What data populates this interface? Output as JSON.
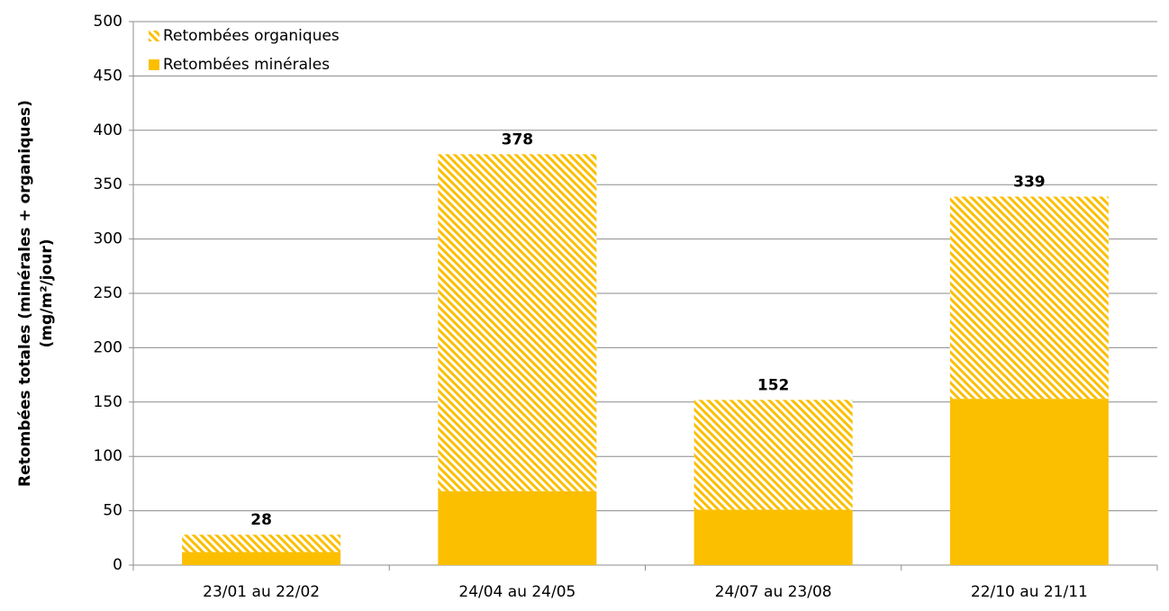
{
  "chart_data": {
    "type": "stacked_bar",
    "ylabel": [
      "Retombées totales (minérales + organiques)",
      "(mg/m²/jour)"
    ],
    "categories": [
      "23/01 au 22/02",
      "24/04 au 24/05",
      "24/07 au 23/08",
      "22/10 au 21/11"
    ],
    "series": [
      {
        "name": "Retombées minérales",
        "color": "#fbbf00",
        "pattern": "solid",
        "values": [
          12,
          68,
          51,
          153
        ]
      },
      {
        "name": "Retombées organiques",
        "color": "#fbbf00",
        "pattern": "hatch",
        "values": [
          16,
          310,
          101,
          186
        ]
      }
    ],
    "totals": [
      28,
      378,
      152,
      339
    ],
    "ylim": [
      0,
      500
    ],
    "yticks": [
      0,
      50,
      100,
      150,
      200,
      250,
      300,
      350,
      400,
      450,
      500
    ],
    "grid": true,
    "legend": "top-left"
  }
}
